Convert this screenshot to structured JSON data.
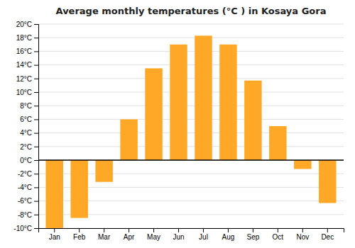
{
  "chart_data": {
    "type": "bar",
    "title": "Average monthly temperatures (°C ) in Kosaya Gora",
    "categories": [
      "Jan",
      "Feb",
      "Mar",
      "Apr",
      "May",
      "Jun",
      "Jul",
      "Aug",
      "Sep",
      "Oct",
      "Nov",
      "Dec"
    ],
    "values": [
      -10,
      -8.5,
      -3.2,
      6.0,
      13.5,
      17.0,
      18.3,
      17.0,
      11.7,
      5.0,
      -1.3,
      -6.3
    ],
    "color": "#FFA726",
    "ylim": [
      -10,
      20
    ],
    "yticks": [
      {
        "value": -10,
        "label": "-10°C"
      },
      {
        "value": -8,
        "label": "-8°C"
      },
      {
        "value": -6,
        "label": "-6°C"
      },
      {
        "value": -4,
        "label": "-4°C"
      },
      {
        "value": -2,
        "label": "-2°C"
      },
      {
        "value": 0,
        "label": "0°C"
      },
      {
        "value": 2,
        "label": "2°C"
      },
      {
        "value": 4,
        "label": "4°C"
      },
      {
        "value": 6,
        "label": "6°C"
      },
      {
        "value": 8,
        "label": "8°C"
      },
      {
        "value": 10,
        "label": "10°C"
      },
      {
        "value": 12,
        "label": "12°C"
      },
      {
        "value": 14,
        "label": "14°C"
      },
      {
        "value": 16,
        "label": "16°C"
      },
      {
        "value": 18,
        "label": "18°C"
      },
      {
        "value": 20,
        "label": "20°C"
      }
    ],
    "grid": true
  }
}
